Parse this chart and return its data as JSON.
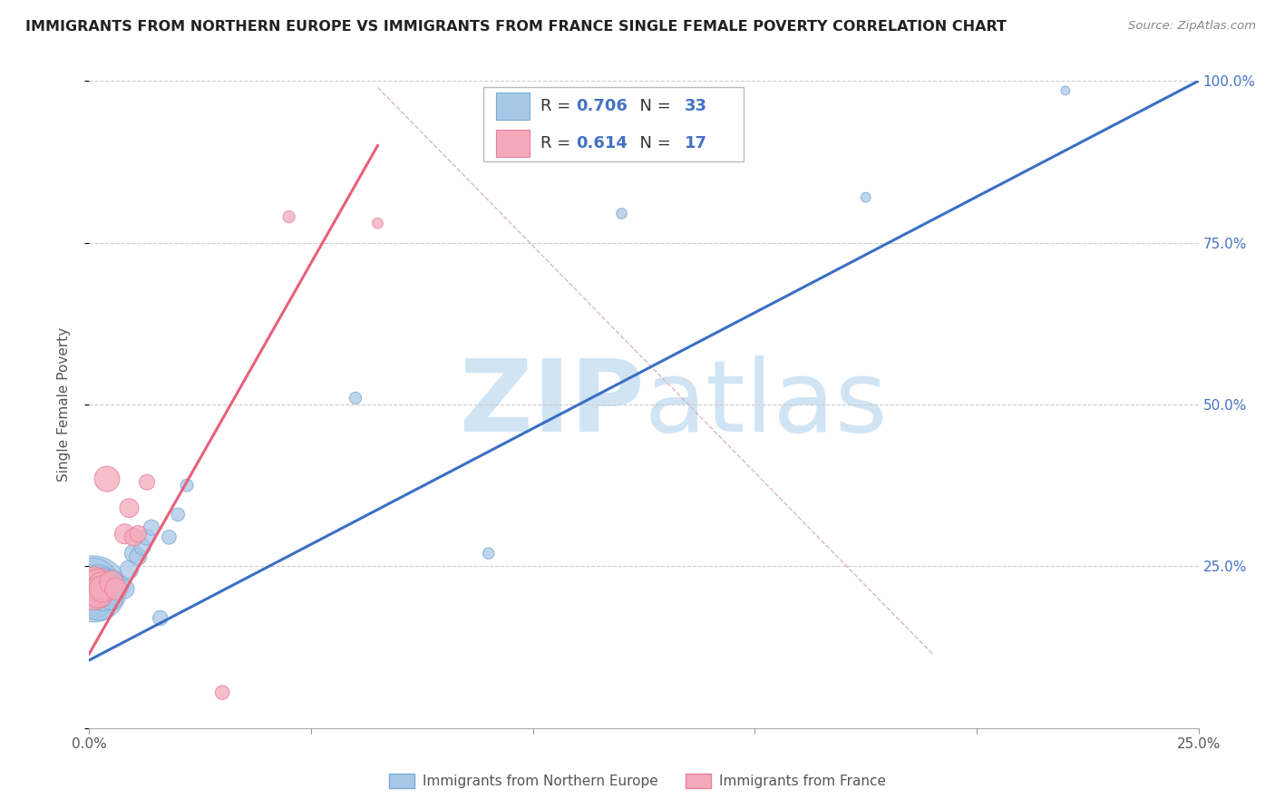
{
  "title": "IMMIGRANTS FROM NORTHERN EUROPE VS IMMIGRANTS FROM FRANCE SINGLE FEMALE POVERTY CORRELATION CHART",
  "source": "Source: ZipAtlas.com",
  "ylabel": "Single Female Poverty",
  "xlim": [
    0,
    0.25
  ],
  "ylim": [
    0,
    1.0
  ],
  "blue_R": 0.706,
  "blue_N": 33,
  "pink_R": 0.614,
  "pink_N": 17,
  "blue_color": "#A8C8E8",
  "pink_color": "#F4AABB",
  "blue_edge_color": "#7AAAD0",
  "pink_edge_color": "#E8809A",
  "blue_line_color": "#3A6FC4",
  "pink_line_color": "#E8607A",
  "diag_color": "#D4B0BC",
  "watermark_color": "#D0E4F4",
  "legend_blue": "Immigrants from Northern Europe",
  "legend_pink": "Immigrants from France",
  "blue_scatter_x": [
    0.001,
    0.001,
    0.001,
    0.002,
    0.002,
    0.002,
    0.003,
    0.003,
    0.003,
    0.004,
    0.004,
    0.005,
    0.005,
    0.005,
    0.006,
    0.006,
    0.007,
    0.008,
    0.009,
    0.01,
    0.011,
    0.012,
    0.013,
    0.014,
    0.016,
    0.018,
    0.02,
    0.022,
    0.06,
    0.09,
    0.12,
    0.175,
    0.22
  ],
  "blue_scatter_y": [
    0.215,
    0.225,
    0.2,
    0.22,
    0.195,
    0.215,
    0.215,
    0.205,
    0.225,
    0.22,
    0.21,
    0.225,
    0.215,
    0.2,
    0.22,
    0.215,
    0.22,
    0.215,
    0.245,
    0.27,
    0.265,
    0.28,
    0.295,
    0.31,
    0.17,
    0.295,
    0.33,
    0.375,
    0.51,
    0.27,
    0.795,
    0.82,
    0.985
  ],
  "blue_scatter_size": [
    550,
    300,
    200,
    220,
    170,
    150,
    130,
    120,
    110,
    100,
    90,
    80,
    70,
    65,
    60,
    55,
    50,
    45,
    42,
    40,
    37,
    35,
    32,
    30,
    28,
    25,
    22,
    20,
    18,
    16,
    14,
    12,
    10
  ],
  "pink_scatter_x": [
    0.001,
    0.001,
    0.002,
    0.002,
    0.003,
    0.003,
    0.004,
    0.005,
    0.006,
    0.008,
    0.009,
    0.01,
    0.011,
    0.013,
    0.03,
    0.045,
    0.065
  ],
  "pink_scatter_y": [
    0.215,
    0.22,
    0.22,
    0.21,
    0.22,
    0.215,
    0.385,
    0.225,
    0.215,
    0.3,
    0.34,
    0.295,
    0.3,
    0.38,
    0.055,
    0.79,
    0.78
  ],
  "pink_scatter_size": [
    220,
    180,
    140,
    120,
    100,
    90,
    80,
    70,
    60,
    50,
    45,
    40,
    35,
    30,
    25,
    18,
    14
  ],
  "blue_line_x": [
    0.0,
    0.25
  ],
  "blue_line_y": [
    0.105,
    1.0
  ],
  "pink_line_x": [
    0.0,
    0.065
  ],
  "pink_line_y": [
    0.115,
    0.9
  ],
  "diag_line_x": [
    0.065,
    0.19
  ],
  "diag_line_y": [
    0.99,
    0.115
  ]
}
